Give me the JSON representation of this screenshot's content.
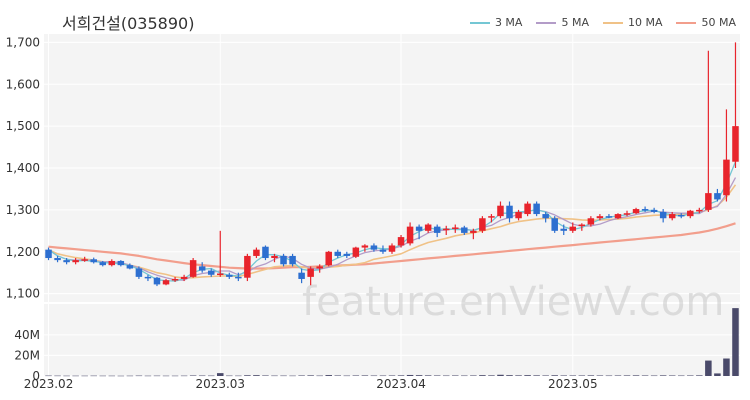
{
  "title": "서희건설(035890)",
  "watermark": "feature.enViewV.com",
  "legend": [
    {
      "label": "3 MA",
      "color": "#74c7d4"
    },
    {
      "label": "5 MA",
      "color": "#b39cc8"
    },
    {
      "label": "10 MA",
      "color": "#f0c287"
    },
    {
      "label": "50 MA",
      "color": "#f29e8c"
    }
  ],
  "colors": {
    "up": "#e8242c",
    "down": "#2d6fd0",
    "volume": "#4a4a6a",
    "grid": "#e6e6e6",
    "panel": "#f4f4f4"
  },
  "chart_data": [
    {
      "type": "candlestick",
      "title": "서희건설(035890)",
      "ylim": [
        1080,
        1720
      ],
      "yticks": [
        "1,100",
        "1,200",
        "1,300",
        "1,400",
        "1,500",
        "1,600",
        "1,700"
      ],
      "ytick_values": [
        1100,
        1200,
        1300,
        1400,
        1500,
        1600,
        1700
      ],
      "xtick_labels": [
        "2023.02",
        "2023.03",
        "2023.04",
        "2023.05"
      ],
      "xtick_index": [
        0,
        19,
        39,
        58
      ],
      "series_names": [
        "3 MA",
        "5 MA",
        "10 MA",
        "50 MA"
      ],
      "ohlc": [
        [
          1205,
          1210,
          1180,
          1185
        ],
        [
          1185,
          1190,
          1175,
          1180
        ],
        [
          1180,
          1185,
          1170,
          1175
        ],
        [
          1175,
          1185,
          1170,
          1180
        ],
        [
          1180,
          1188,
          1176,
          1182
        ],
        [
          1182,
          1186,
          1172,
          1175
        ],
        [
          1175,
          1178,
          1165,
          1168
        ],
        [
          1168,
          1182,
          1165,
          1178
        ],
        [
          1178,
          1180,
          1165,
          1168
        ],
        [
          1168,
          1172,
          1158,
          1160
        ],
        [
          1160,
          1165,
          1135,
          1140
        ],
        [
          1140,
          1145,
          1130,
          1138
        ],
        [
          1138,
          1140,
          1118,
          1122
        ],
        [
          1122,
          1135,
          1120,
          1132
        ],
        [
          1132,
          1140,
          1128,
          1135
        ],
        [
          1135,
          1145,
          1130,
          1140
        ],
        [
          1140,
          1185,
          1138,
          1180
        ],
        [
          1165,
          1175,
          1150,
          1155
        ],
        [
          1155,
          1160,
          1140,
          1145
        ],
        [
          1145,
          1250,
          1140,
          1148
        ],
        [
          1145,
          1150,
          1135,
          1140
        ],
        [
          1140,
          1150,
          1130,
          1138
        ],
        [
          1138,
          1195,
          1130,
          1190
        ],
        [
          1190,
          1210,
          1185,
          1205
        ],
        [
          1212,
          1215,
          1180,
          1185
        ],
        [
          1185,
          1195,
          1175,
          1190
        ],
        [
          1190,
          1195,
          1165,
          1170
        ],
        [
          1190,
          1195,
          1165,
          1170
        ],
        [
          1150,
          1160,
          1125,
          1135
        ],
        [
          1140,
          1165,
          1120,
          1160
        ],
        [
          1160,
          1170,
          1150,
          1165
        ],
        [
          1168,
          1202,
          1165,
          1200
        ],
        [
          1200,
          1205,
          1185,
          1190
        ],
        [
          1195,
          1200,
          1185,
          1190
        ],
        [
          1188,
          1212,
          1185,
          1210
        ],
        [
          1210,
          1218,
          1200,
          1215
        ],
        [
          1215,
          1220,
          1200,
          1205
        ],
        [
          1205,
          1215,
          1195,
          1200
        ],
        [
          1200,
          1220,
          1195,
          1215
        ],
        [
          1215,
          1240,
          1210,
          1235
        ],
        [
          1220,
          1270,
          1215,
          1260
        ],
        [
          1260,
          1265,
          1230,
          1250
        ],
        [
          1250,
          1268,
          1245,
          1265
        ],
        [
          1260,
          1265,
          1235,
          1245
        ],
        [
          1255,
          1262,
          1240,
          1255
        ],
        [
          1255,
          1265,
          1245,
          1258
        ],
        [
          1258,
          1262,
          1240,
          1245
        ],
        [
          1245,
          1255,
          1230,
          1250
        ],
        [
          1250,
          1285,
          1245,
          1280
        ],
        [
          1282,
          1290,
          1270,
          1285
        ],
        [
          1285,
          1320,
          1280,
          1310
        ],
        [
          1310,
          1320,
          1270,
          1280
        ],
        [
          1280,
          1300,
          1275,
          1295
        ],
        [
          1290,
          1320,
          1285,
          1315
        ],
        [
          1315,
          1320,
          1285,
          1290
        ],
        [
          1290,
          1295,
          1270,
          1280
        ],
        [
          1280,
          1285,
          1245,
          1250
        ],
        [
          1255,
          1265,
          1240,
          1250
        ],
        [
          1250,
          1270,
          1245,
          1260
        ],
        [
          1262,
          1268,
          1250,
          1265
        ],
        [
          1265,
          1285,
          1260,
          1280
        ],
        [
          1280,
          1290,
          1275,
          1285
        ],
        [
          1285,
          1290,
          1280,
          1282
        ],
        [
          1280,
          1292,
          1278,
          1290
        ],
        [
          1290,
          1298,
          1285,
          1292
        ],
        [
          1292,
          1305,
          1290,
          1302
        ],
        [
          1302,
          1308,
          1295,
          1300
        ],
        [
          1300,
          1305,
          1292,
          1295
        ],
        [
          1295,
          1302,
          1270,
          1280
        ],
        [
          1280,
          1295,
          1275,
          1290
        ],
        [
          1288,
          1292,
          1280,
          1285
        ],
        [
          1285,
          1300,
          1280,
          1298
        ],
        [
          1298,
          1305,
          1292,
          1300
        ],
        [
          1300,
          1680,
          1295,
          1340
        ],
        [
          1340,
          1350,
          1320,
          1325
        ],
        [
          1335,
          1540,
          1320,
          1420
        ],
        [
          1415,
          1700,
          1400,
          1500
        ]
      ],
      "ma": [
        [
          1205,
          1190,
          1182,
          1178,
          1179,
          1177,
          1174,
          1173,
          1171,
          1167,
          1158,
          1146,
          1133,
          1131,
          1130,
          1136,
          1150,
          1158,
          1160,
          1149,
          1144,
          1142,
          1156,
          1178,
          1193,
          1193,
          1188,
          1177,
          1158,
          1155,
          1157,
          1175,
          1185,
          1193,
          1197,
          1205,
          1210,
          1207,
          1207,
          1217,
          1237,
          1248,
          1258,
          1253,
          1255,
          1253,
          1253,
          1251,
          1258,
          1272,
          1292,
          1292,
          1295,
          1297,
          1300,
          1295,
          1273,
          1260,
          1253,
          1258,
          1268,
          1277,
          1282,
          1286,
          1288,
          1295,
          1298,
          1299,
          1292,
          1288,
          1285,
          1291,
          1294,
          1313,
          1322,
          1362,
          1415
        ],
        [
          1205,
          1190,
          1182,
          1180,
          1181,
          1178,
          1176,
          1176,
          1174,
          1168,
          1162,
          1152,
          1144,
          1138,
          1133,
          1132,
          1143,
          1148,
          1151,
          1154,
          1154,
          1145,
          1152,
          1164,
          1171,
          1182,
          1190,
          1184,
          1170,
          1161,
          1158,
          1163,
          1170,
          1181,
          1190,
          1198,
          1202,
          1204,
          1207,
          1213,
          1225,
          1233,
          1245,
          1250,
          1252,
          1255,
          1254,
          1251,
          1258,
          1263,
          1275,
          1282,
          1290,
          1297,
          1300,
          1296,
          1288,
          1277,
          1266,
          1261,
          1262,
          1266,
          1274,
          1280,
          1284,
          1289,
          1293,
          1297,
          1295,
          1293,
          1292,
          1292,
          1291,
          1303,
          1308,
          1337,
          1377
        ],
        [
          1205,
          1195,
          1190,
          1186,
          1183,
          1180,
          1176,
          1174,
          1172,
          1168,
          1163,
          1157,
          1150,
          1146,
          1140,
          1137,
          1138,
          1140,
          1141,
          1142,
          1142,
          1141,
          1146,
          1152,
          1158,
          1164,
          1166,
          1167,
          1164,
          1160,
          1161,
          1163,
          1165,
          1168,
          1170,
          1174,
          1182,
          1186,
          1190,
          1195,
          1205,
          1214,
          1222,
          1227,
          1232,
          1238,
          1242,
          1245,
          1250,
          1255,
          1260,
          1267,
          1272,
          1275,
          1278,
          1280,
          1280,
          1279,
          1278,
          1276,
          1275,
          1276,
          1277,
          1278,
          1280,
          1283,
          1285,
          1287,
          1288,
          1288,
          1290,
          1292,
          1294,
          1300,
          1310,
          1330,
          1360
        ],
        [
          1212,
          1210,
          1208,
          1206,
          1204,
          1202,
          1200,
          1198,
          1196,
          1193,
          1190,
          1186,
          1182,
          1179,
          1176,
          1173,
          1170,
          1168,
          1166,
          1164,
          1162,
          1161,
          1160,
          1160,
          1160,
          1161,
          1162,
          1163,
          1163,
          1164,
          1165,
          1166,
          1167,
          1168,
          1169,
          1170,
          1172,
          1174,
          1176,
          1178,
          1180,
          1182,
          1184,
          1186,
          1188,
          1190,
          1192,
          1194,
          1196,
          1198,
          1200,
          1202,
          1204,
          1206,
          1208,
          1210,
          1212,
          1214,
          1216,
          1218,
          1220,
          1222,
          1224,
          1226,
          1228,
          1230,
          1232,
          1234,
          1236,
          1238,
          1240,
          1243,
          1246,
          1250,
          1255,
          1261,
          1268
        ]
      ]
    },
    {
      "type": "bar",
      "title": "",
      "ylabel": "",
      "ylim": [
        0,
        70000000
      ],
      "yticks": [
        "0",
        "20M",
        "40M"
      ],
      "ytick_values": [
        0,
        20000000,
        40000000
      ],
      "values": [
        400000,
        350000,
        300000,
        300000,
        300000,
        350000,
        300000,
        300000,
        250000,
        300000,
        400000,
        300000,
        350000,
        300000,
        300000,
        350000,
        500000,
        450000,
        400000,
        2800000,
        400000,
        350000,
        700000,
        800000,
        500000,
        400000,
        400000,
        350000,
        500000,
        600000,
        400000,
        900000,
        500000,
        400000,
        500000,
        550000,
        450000,
        450000,
        500000,
        600000,
        1000000,
        800000,
        600000,
        500000,
        450000,
        500000,
        450000,
        500000,
        800000,
        600000,
        1200000,
        800000,
        600000,
        800000,
        600000,
        500000,
        700000,
        500000,
        500000,
        500000,
        600000,
        500000,
        450000,
        500000,
        550000,
        600000,
        500000,
        450000,
        600000,
        500000,
        450000,
        500000,
        600000,
        15000000,
        2500000,
        17000000,
        66000000
      ]
    }
  ]
}
